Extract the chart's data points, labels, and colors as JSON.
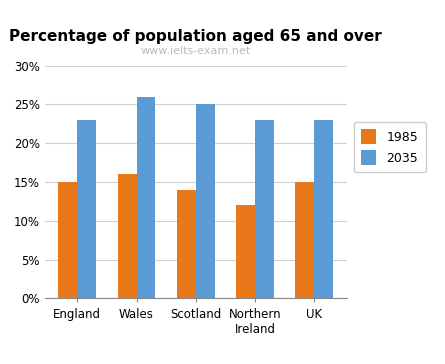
{
  "title": "Percentage of population aged 65 and over",
  "subtitle": "www.ielts-exam.net",
  "categories": [
    "England",
    "Wales",
    "Scotland",
    "Northern\nIreland",
    "UK"
  ],
  "series": [
    {
      "label": "1985",
      "values": [
        15,
        16,
        14,
        12,
        15
      ],
      "color": "#E8781A"
    },
    {
      "label": "2035",
      "values": [
        23,
        26,
        25,
        23,
        23
      ],
      "color": "#5B9BD5"
    }
  ],
  "ylim": [
    0,
    30
  ],
  "yticks": [
    0,
    5,
    10,
    15,
    20,
    25,
    30
  ],
  "ytick_labels": [
    "0%",
    "5%",
    "10%",
    "15%",
    "20%",
    "25%",
    "30%"
  ],
  "bar_width": 0.32,
  "title_fontsize": 11,
  "subtitle_color": "#BBBBBB",
  "subtitle_fontsize": 8,
  "background_color": "#FFFFFF",
  "tick_fontsize": 8.5,
  "legend_fontsize": 9
}
